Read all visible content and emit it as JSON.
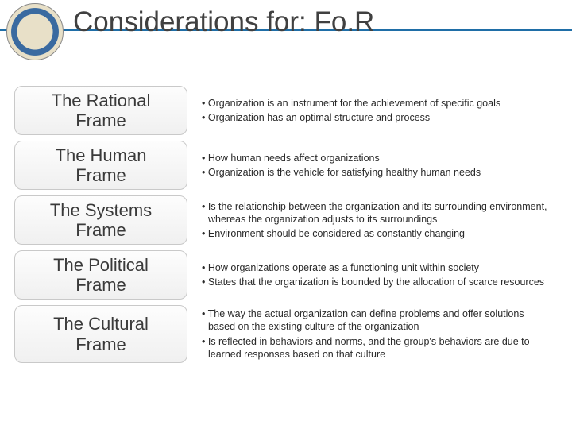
{
  "title": "Considerations for: Fo.R",
  "accent_color": "#1f6ea7",
  "background": "#ffffff",
  "frames": [
    {
      "label_line1": "The Rational",
      "label_line2": "Frame",
      "bullets": [
        "Organization is an instrument for the achievement of specific goals",
        "Organization has an optimal structure and process"
      ]
    },
    {
      "label_line1": "The Human",
      "label_line2": "Frame",
      "bullets": [
        "How human needs affect organizations",
        "Organization is the vehicle for satisfying healthy human needs"
      ]
    },
    {
      "label_line1": "The Systems",
      "label_line2": "Frame",
      "bullets": [
        "Is the relationship between the organization and its surrounding environment, whereas the organization adjusts to its surroundings",
        "Environment should be considered as constantly changing"
      ]
    },
    {
      "label_line1": "The Political",
      "label_line2": "Frame",
      "bullets": [
        "How organizations operate as a functioning unit within society",
        "States that the organization is bounded by the allocation of scarce resources"
      ]
    },
    {
      "label_line1": "The Cultural",
      "label_line2": "Frame",
      "bullets": [
        "The way the actual organization can define problems and offer solutions based on the existing culture of the organization",
        "Is reflected in behaviors and norms, and the group's behaviors are due to learned responses based on that culture"
      ]
    }
  ]
}
